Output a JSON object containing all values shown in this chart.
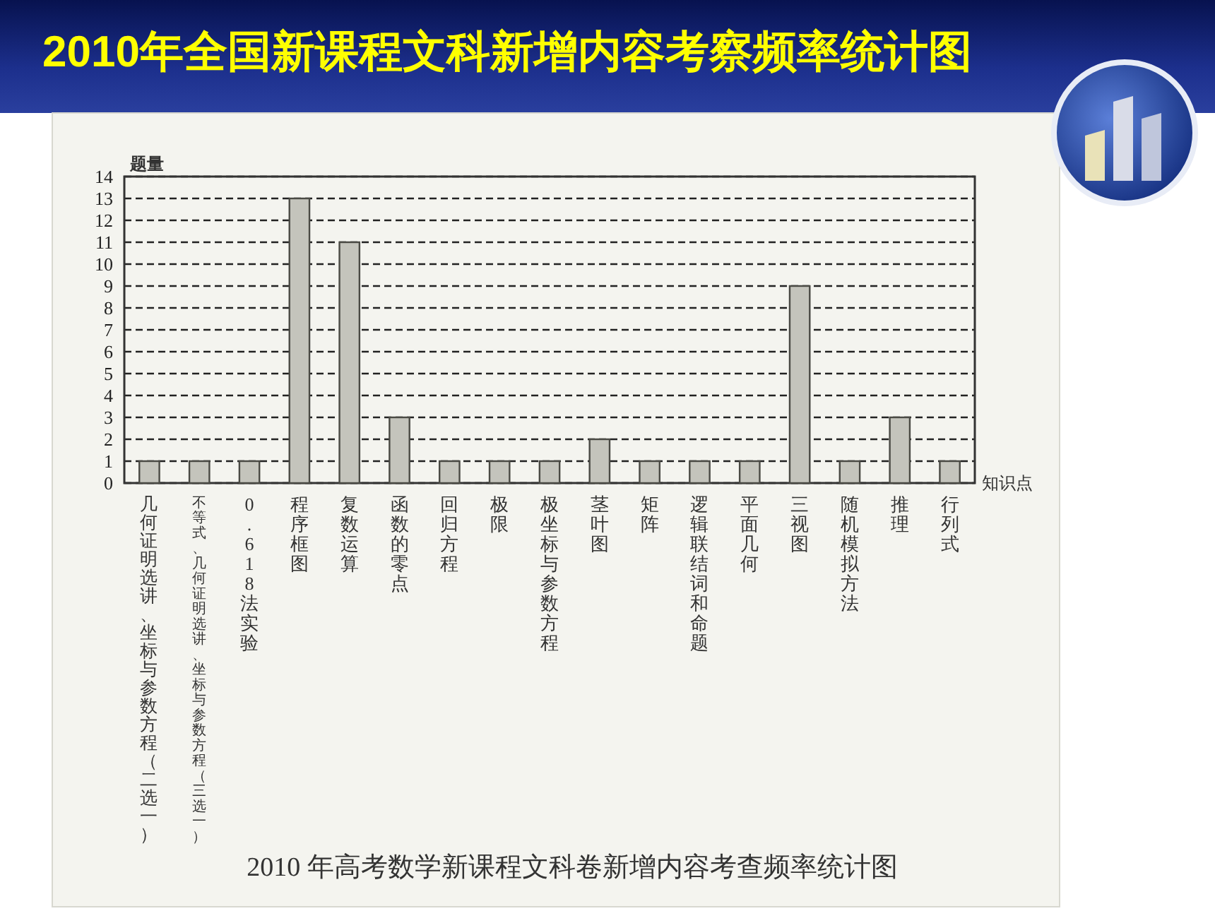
{
  "chart_data": {
    "type": "bar",
    "title": "2010年全国新课程文科新增内容考察频率统计图",
    "ylabel": "题量",
    "xlabel": "知识点",
    "categories": [
      "几何证明选讲、坐标与参数方程（二选一）",
      "不等式、几何证明选讲、坐标与参数方程（三选一）",
      "0.618法实验",
      "程序框图",
      "复数运算",
      "函数的零点",
      "回归方程",
      "极限",
      "极坐标与参数方程",
      "茎叶图",
      "矩阵",
      "逻辑联结词和命题",
      "平面几何",
      "三视图",
      "随机模拟方法",
      "推理",
      "行列式"
    ],
    "values": [
      1,
      1,
      1,
      13,
      11,
      3,
      1,
      1,
      1,
      2,
      1,
      1,
      1,
      9,
      1,
      3,
      1
    ],
    "color": "#c4c4bc",
    "ylim": [
      0,
      14
    ],
    "yticks": [
      0,
      1,
      2,
      3,
      4,
      5,
      6,
      7,
      8,
      9,
      10,
      11,
      12,
      13,
      14
    ],
    "grid": "y",
    "annotations": [
      "2010 年高考数学新课程文科卷新增内容考查频率统计图"
    ]
  }
}
